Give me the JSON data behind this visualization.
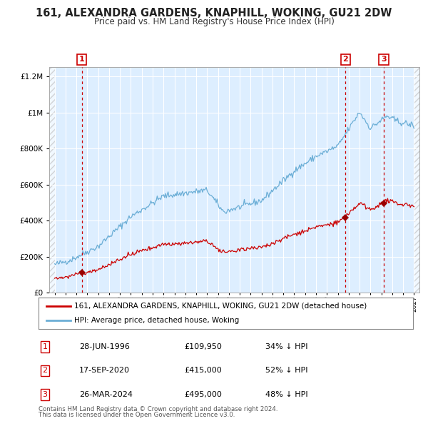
{
  "title": "161, ALEXANDRA GARDENS, KNAPHILL, WOKING, GU21 2DW",
  "subtitle": "Price paid vs. HM Land Registry's House Price Index (HPI)",
  "legend_line1": "161, ALEXANDRA GARDENS, KNAPHILL, WOKING, GU21 2DW (detached house)",
  "legend_line2": "HPI: Average price, detached house, Woking",
  "footer1": "Contains HM Land Registry data © Crown copyright and database right 2024.",
  "footer2": "This data is licensed under the Open Government Licence v3.0.",
  "transactions": [
    {
      "num": 1,
      "date": "28-JUN-1996",
      "price": 109950,
      "pct": "34%",
      "dir": "↓",
      "year": 1996.49
    },
    {
      "num": 2,
      "date": "17-SEP-2020",
      "price": 415000,
      "pct": "52%",
      "dir": "↓",
      "year": 2020.71
    },
    {
      "num": 3,
      "date": "26-MAR-2024",
      "price": 495000,
      "pct": "48%",
      "dir": "↓",
      "year": 2024.23
    }
  ],
  "hpi_color": "#6baed6",
  "price_color": "#cc0000",
  "bg_color": "#ddeeff",
  "grid_color": "#c8d8e8",
  "vline_color": "#cc0000",
  "marker_color": "#990000",
  "xlim_data": [
    1994.0,
    2027.0
  ],
  "xlim": [
    1993.5,
    2027.5
  ],
  "ylim": [
    0,
    1250000
  ],
  "yticks": [
    0,
    200000,
    400000,
    600000,
    800000,
    1000000,
    1200000
  ]
}
